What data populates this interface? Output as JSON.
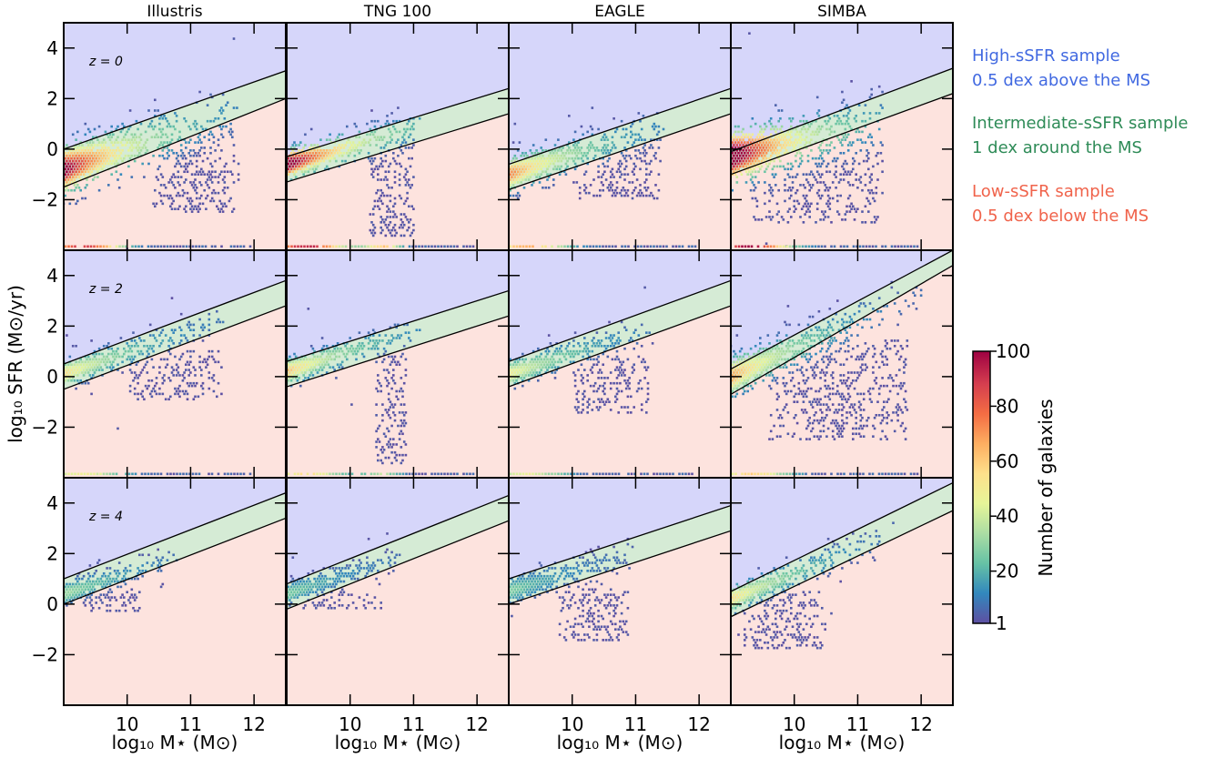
{
  "chart_data": {
    "type": "scatter",
    "subtype": "hexbin density grid",
    "columns": [
      "Illustris",
      "TNG 100",
      "EAGLE",
      "SIMBA"
    ],
    "rows": [
      "z = 0",
      "z = 2",
      "z = 4"
    ],
    "xlabel": "log₁₀ M⋆ (M⊙)",
    "ylabel": "log₁₀ SFR (M⊙/yr)",
    "xlim": [
      9.0,
      12.5
    ],
    "ylim": [
      -4.0,
      5.0
    ],
    "xticks": [
      10,
      11,
      12
    ],
    "yticks": [
      -2,
      0,
      2,
      4
    ],
    "colorbar": {
      "label": "Number of galaxies",
      "ticks": [
        1,
        20,
        40,
        60,
        80,
        100
      ],
      "range": [
        1,
        100
      ],
      "colormap": "Spectral_r",
      "stops": [
        "#5e4fa2",
        "#3288bd",
        "#66c2a5",
        "#abdda4",
        "#e6f598",
        "#fee08b",
        "#fdae61",
        "#f46d43",
        "#d53e4f",
        "#9e0142"
      ]
    },
    "regions": {
      "high": {
        "label": "High-sSFR sample",
        "desc": "0.5 dex above the MS",
        "text_color": "#4169e1",
        "fill": "#d6d6fa"
      },
      "mid": {
        "label": "Intermediate-sSFR sample",
        "desc": "1 dex around the MS",
        "text_color": "#2e8b57",
        "fill": "#d5ebd5"
      },
      "low": {
        "label": "Low-sSFR sample",
        "desc": "0.5 dex below the MS",
        "text_color": "#f0634b",
        "fill": "#fde3de"
      }
    },
    "ms_lines": [
      [
        {
          "x": [
            9.0,
            12.5
          ],
          "upper": [
            0.0,
            3.1
          ],
          "lower": [
            -1.5,
            2.0
          ]
        },
        {
          "x": [
            9.0,
            12.5
          ],
          "upper": [
            -0.3,
            2.4
          ],
          "lower": [
            -1.3,
            1.4
          ]
        },
        {
          "x": [
            9.0,
            12.5
          ],
          "upper": [
            -0.6,
            2.4
          ],
          "lower": [
            -1.6,
            1.4
          ]
        },
        {
          "x": [
            9.0,
            12.5
          ],
          "upper": [
            -0.1,
            3.2
          ],
          "lower": [
            -1.0,
            2.2
          ]
        }
      ],
      [
        {
          "x": [
            9.0,
            12.5
          ],
          "upper": [
            0.5,
            3.8
          ],
          "lower": [
            -0.5,
            2.8
          ]
        },
        {
          "x": [
            9.0,
            12.5
          ],
          "upper": [
            0.6,
            3.4
          ],
          "lower": [
            -0.4,
            2.4
          ]
        },
        {
          "x": [
            9.0,
            12.5
          ],
          "upper": [
            0.6,
            3.8
          ],
          "lower": [
            -0.4,
            2.8
          ]
        },
        {
          "x": [
            9.0,
            12.5
          ],
          "upper": [
            0.3,
            5.0
          ],
          "lower": [
            -0.7,
            4.4
          ]
        }
      ],
      [
        {
          "x": [
            9.0,
            12.5
          ],
          "upper": [
            1.0,
            4.4
          ],
          "lower": [
            0.0,
            3.4
          ]
        },
        {
          "x": [
            9.0,
            12.5
          ],
          "upper": [
            0.8,
            4.3
          ],
          "lower": [
            -0.2,
            3.3
          ]
        },
        {
          "x": [
            9.0,
            12.5
          ],
          "upper": [
            1.0,
            3.9
          ],
          "lower": [
            0.0,
            2.9
          ]
        },
        {
          "x": [
            9.0,
            12.5
          ],
          "upper": [
            0.5,
            4.8
          ],
          "lower": [
            -0.5,
            3.7
          ]
        }
      ]
    ],
    "density_clouds": [
      [
        {
          "slope": 0.82,
          "x0": 9.0,
          "y0": -0.8,
          "xmax": 11.7,
          "spread": 0.55,
          "quench": [
            10.4,
            11.8,
            -2.5,
            0.8
          ],
          "peak": 85,
          "floor": true
        },
        {
          "slope": 0.72,
          "x0": 9.0,
          "y0": -0.6,
          "xmax": 11.0,
          "spread": 0.35,
          "quench": [
            10.3,
            11.0,
            -3.5,
            1.2
          ],
          "peak": 90,
          "floor": true
        },
        {
          "slope": 0.78,
          "x0": 9.0,
          "y0": -1.0,
          "xmax": 11.4,
          "spread": 0.4,
          "quench": [
            10.0,
            11.4,
            -2.0,
            0.6
          ],
          "peak": 60,
          "floor": true
        },
        {
          "slope": 0.6,
          "x0": 9.0,
          "y0": -0.3,
          "xmax": 11.4,
          "spread": 0.6,
          "quench": [
            9.3,
            11.4,
            -3.0,
            0.6
          ],
          "peak": 95,
          "floor": true
        }
      ],
      [
        {
          "slope": 0.85,
          "x0": 9.0,
          "y0": 0.1,
          "xmax": 11.5,
          "spread": 0.3,
          "quench": [
            10.0,
            11.5,
            -1.0,
            1.0
          ],
          "peak": 45,
          "floor": true
        },
        {
          "slope": 0.8,
          "x0": 9.0,
          "y0": 0.2,
          "xmax": 11.0,
          "spread": 0.3,
          "quench": [
            10.4,
            10.9,
            -3.5,
            1.0
          ],
          "peak": 50,
          "floor": true
        },
        {
          "slope": 0.8,
          "x0": 9.0,
          "y0": 0.1,
          "xmax": 11.2,
          "spread": 0.3,
          "quench": [
            10.0,
            11.2,
            -1.5,
            0.8
          ],
          "peak": 40,
          "floor": true
        },
        {
          "slope": 1.1,
          "x0": 9.0,
          "y0": 0.0,
          "xmax": 12.0,
          "spread": 0.45,
          "quench": [
            9.6,
            11.8,
            -2.5,
            1.5
          ],
          "peak": 55,
          "floor": true
        }
      ],
      [
        {
          "slope": 0.8,
          "x0": 9.0,
          "y0": 0.4,
          "xmax": 10.7,
          "spread": 0.25,
          "quench": [
            9.3,
            10.2,
            -0.3,
            0.5
          ],
          "peak": 25,
          "floor": false
        },
        {
          "slope": 0.8,
          "x0": 9.0,
          "y0": 0.4,
          "xmax": 10.8,
          "spread": 0.25,
          "quench": [
            9.2,
            10.5,
            -0.2,
            0.5
          ],
          "peak": 20,
          "floor": false
        },
        {
          "slope": 0.75,
          "x0": 9.0,
          "y0": 0.5,
          "xmax": 10.9,
          "spread": 0.3,
          "quench": [
            9.8,
            10.9,
            -1.5,
            0.6
          ],
          "peak": 20,
          "floor": false
        },
        {
          "slope": 1.0,
          "x0": 9.0,
          "y0": 0.2,
          "xmax": 11.6,
          "spread": 0.3,
          "quench": [
            9.2,
            10.5,
            -1.8,
            0.5
          ],
          "peak": 45,
          "floor": false
        }
      ]
    ]
  }
}
